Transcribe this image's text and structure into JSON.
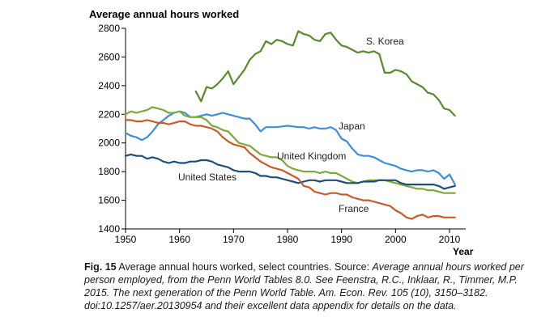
{
  "chart_data": {
    "type": "line",
    "title": "Average annual hours worked",
    "xlabel": "Year",
    "ylabel": "",
    "xlim": [
      1950,
      2013
    ],
    "ylim": [
      1400,
      2800
    ],
    "xticks": [
      1950,
      1960,
      1970,
      1980,
      1990,
      2000,
      2010
    ],
    "yticks": [
      1400,
      1600,
      1800,
      2000,
      2200,
      2400,
      2600,
      2800
    ],
    "grid": false,
    "series": [
      {
        "name": "S. Korea",
        "label": "S. Korea",
        "color": "#5a8a2e",
        "width": 2.2,
        "x": [
          1963,
          1964,
          1965,
          1966,
          1967,
          1968,
          1969,
          1970,
          1971,
          1972,
          1973,
          1974,
          1975,
          1976,
          1977,
          1978,
          1979,
          1980,
          1981,
          1982,
          1983,
          1984,
          1985,
          1986,
          1987,
          1988,
          1989,
          1990,
          1991,
          1992,
          1993,
          1994,
          1995,
          1996,
          1997,
          1998,
          1999,
          2000,
          2001,
          2002,
          2003,
          2004,
          2005,
          2006,
          2007,
          2008,
          2009,
          2010,
          2011
        ],
        "y": [
          2360,
          2290,
          2390,
          2380,
          2410,
          2450,
          2500,
          2410,
          2460,
          2510,
          2580,
          2620,
          2640,
          2710,
          2690,
          2720,
          2710,
          2690,
          2680,
          2780,
          2760,
          2750,
          2720,
          2710,
          2760,
          2770,
          2720,
          2680,
          2670,
          2650,
          2630,
          2640,
          2630,
          2640,
          2620,
          2490,
          2490,
          2510,
          2500,
          2480,
          2430,
          2410,
          2390,
          2350,
          2340,
          2300,
          2240,
          2230,
          2190
        ]
      },
      {
        "name": "Japan",
        "label": "Japan",
        "color": "#3d8fd9",
        "width": 2.2,
        "x": [
          1950,
          1951,
          1952,
          1953,
          1954,
          1955,
          1956,
          1957,
          1958,
          1959,
          1960,
          1961,
          1962,
          1963,
          1964,
          1965,
          1966,
          1967,
          1968,
          1969,
          1970,
          1971,
          1972,
          1973,
          1974,
          1975,
          1976,
          1977,
          1978,
          1979,
          1980,
          1981,
          1982,
          1983,
          1984,
          1985,
          1986,
          1987,
          1988,
          1989,
          1990,
          1991,
          1992,
          1993,
          1994,
          1995,
          1996,
          1997,
          1998,
          1999,
          2000,
          2001,
          2002,
          2003,
          2004,
          2005,
          2006,
          2007,
          2008,
          2009,
          2010,
          2011
        ],
        "y": [
          2070,
          2050,
          2040,
          2020,
          2040,
          2080,
          2130,
          2160,
          2190,
          2210,
          2220,
          2210,
          2180,
          2180,
          2190,
          2200,
          2190,
          2200,
          2210,
          2200,
          2190,
          2180,
          2170,
          2170,
          2130,
          2080,
          2110,
          2110,
          2110,
          2115,
          2120,
          2115,
          2110,
          2110,
          2100,
          2110,
          2100,
          2100,
          2110,
          2090,
          2030,
          2010,
          1960,
          1920,
          1910,
          1910,
          1900,
          1880,
          1860,
          1850,
          1840,
          1820,
          1810,
          1800,
          1810,
          1810,
          1800,
          1810,
          1790,
          1750,
          1780,
          1710
        ]
      },
      {
        "name": "United Kingdom",
        "label": "United Kingdom",
        "color": "#7daa3a",
        "width": 2.2,
        "x": [
          1950,
          1951,
          1952,
          1953,
          1954,
          1955,
          1956,
          1957,
          1958,
          1959,
          1960,
          1961,
          1962,
          1963,
          1964,
          1965,
          1966,
          1967,
          1968,
          1969,
          1970,
          1971,
          1972,
          1973,
          1974,
          1975,
          1976,
          1977,
          1978,
          1979,
          1980,
          1981,
          1982,
          1983,
          1984,
          1985,
          1986,
          1987,
          1988,
          1989,
          1990,
          1991,
          1992,
          1993,
          1994,
          1995,
          1996,
          1997,
          1998,
          1999,
          2000,
          2001,
          2002,
          2003,
          2004,
          2005,
          2006,
          2007,
          2008,
          2009,
          2010,
          2011
        ],
        "y": [
          2200,
          2220,
          2210,
          2220,
          2230,
          2250,
          2240,
          2230,
          2210,
          2210,
          2220,
          2190,
          2180,
          2180,
          2180,
          2160,
          2120,
          2110,
          2090,
          2080,
          2040,
          2000,
          1990,
          1980,
          1950,
          1920,
          1910,
          1900,
          1900,
          1880,
          1840,
          1820,
          1810,
          1800,
          1800,
          1800,
          1790,
          1800,
          1790,
          1790,
          1770,
          1750,
          1730,
          1720,
          1730,
          1740,
          1740,
          1740,
          1740,
          1730,
          1720,
          1710,
          1700,
          1690,
          1680,
          1680,
          1670,
          1670,
          1660,
          1650,
          1650,
          1650
        ]
      },
      {
        "name": "United States",
        "label": "United States",
        "color": "#1f4e7a",
        "width": 2.2,
        "x": [
          1950,
          1951,
          1952,
          1953,
          1954,
          1955,
          1956,
          1957,
          1958,
          1959,
          1960,
          1961,
          1962,
          1963,
          1964,
          1965,
          1966,
          1967,
          1968,
          1969,
          1970,
          1971,
          1972,
          1973,
          1974,
          1975,
          1976,
          1977,
          1978,
          1979,
          1980,
          1981,
          1982,
          1983,
          1984,
          1985,
          1986,
          1987,
          1988,
          1989,
          1990,
          1991,
          1992,
          1993,
          1994,
          1995,
          1996,
          1997,
          1998,
          1999,
          2000,
          2001,
          2002,
          2003,
          2004,
          2005,
          2006,
          2007,
          2008,
          2009,
          2010,
          2011
        ],
        "y": [
          1910,
          1920,
          1910,
          1910,
          1890,
          1900,
          1890,
          1870,
          1860,
          1870,
          1860,
          1860,
          1870,
          1870,
          1880,
          1880,
          1870,
          1850,
          1840,
          1830,
          1810,
          1800,
          1800,
          1800,
          1790,
          1770,
          1770,
          1760,
          1760,
          1750,
          1740,
          1730,
          1720,
          1730,
          1740,
          1740,
          1730,
          1740,
          1740,
          1740,
          1730,
          1720,
          1720,
          1720,
          1730,
          1730,
          1730,
          1740,
          1740,
          1740,
          1740,
          1720,
          1710,
          1710,
          1710,
          1710,
          1710,
          1710,
          1700,
          1680,
          1690,
          1700
        ]
      },
      {
        "name": "France",
        "label": "France",
        "color": "#c95a2a",
        "width": 2.2,
        "x": [
          1950,
          1951,
          1952,
          1953,
          1954,
          1955,
          1956,
          1957,
          1958,
          1959,
          1960,
          1961,
          1962,
          1963,
          1964,
          1965,
          1966,
          1967,
          1968,
          1969,
          1970,
          1971,
          1972,
          1973,
          1974,
          1975,
          1976,
          1977,
          1978,
          1979,
          1980,
          1981,
          1982,
          1983,
          1984,
          1985,
          1986,
          1987,
          1988,
          1989,
          1990,
          1991,
          1992,
          1993,
          1994,
          1995,
          1996,
          1997,
          1998,
          1999,
          2000,
          2001,
          2002,
          2003,
          2004,
          2005,
          2006,
          2007,
          2008,
          2009,
          2010,
          2011
        ],
        "y": [
          2160,
          2160,
          2150,
          2150,
          2160,
          2150,
          2140,
          2140,
          2130,
          2140,
          2150,
          2150,
          2130,
          2120,
          2120,
          2110,
          2100,
          2080,
          2040,
          2010,
          1990,
          1980,
          1970,
          1930,
          1900,
          1870,
          1850,
          1830,
          1820,
          1810,
          1790,
          1770,
          1750,
          1700,
          1690,
          1660,
          1650,
          1640,
          1650,
          1650,
          1640,
          1640,
          1620,
          1610,
          1600,
          1600,
          1590,
          1580,
          1570,
          1560,
          1530,
          1510,
          1480,
          1470,
          1490,
          1500,
          1480,
          1490,
          1490,
          1480,
          1480,
          1480
        ]
      }
    ],
    "labels": [
      "United Kingdom",
      "United States",
      "France",
      "S. Korea",
      "Japan"
    ]
  },
  "caption": {
    "fig_label": "Fig. 15",
    "lead": " Average annual hours worked, select countries. Source: ",
    "source": "Average annual hours worked per person employed, from the Penn World Tables 8.0. See Feenstra, R.C., Inklaar, R., Timmer, M.P. 2015. The next generation of the Penn World Table. Am. Econ. Rev. 105 (10), 3150–3182. doi:10.1257/aer.20130954 and their excellent data appendix for details on the data."
  }
}
